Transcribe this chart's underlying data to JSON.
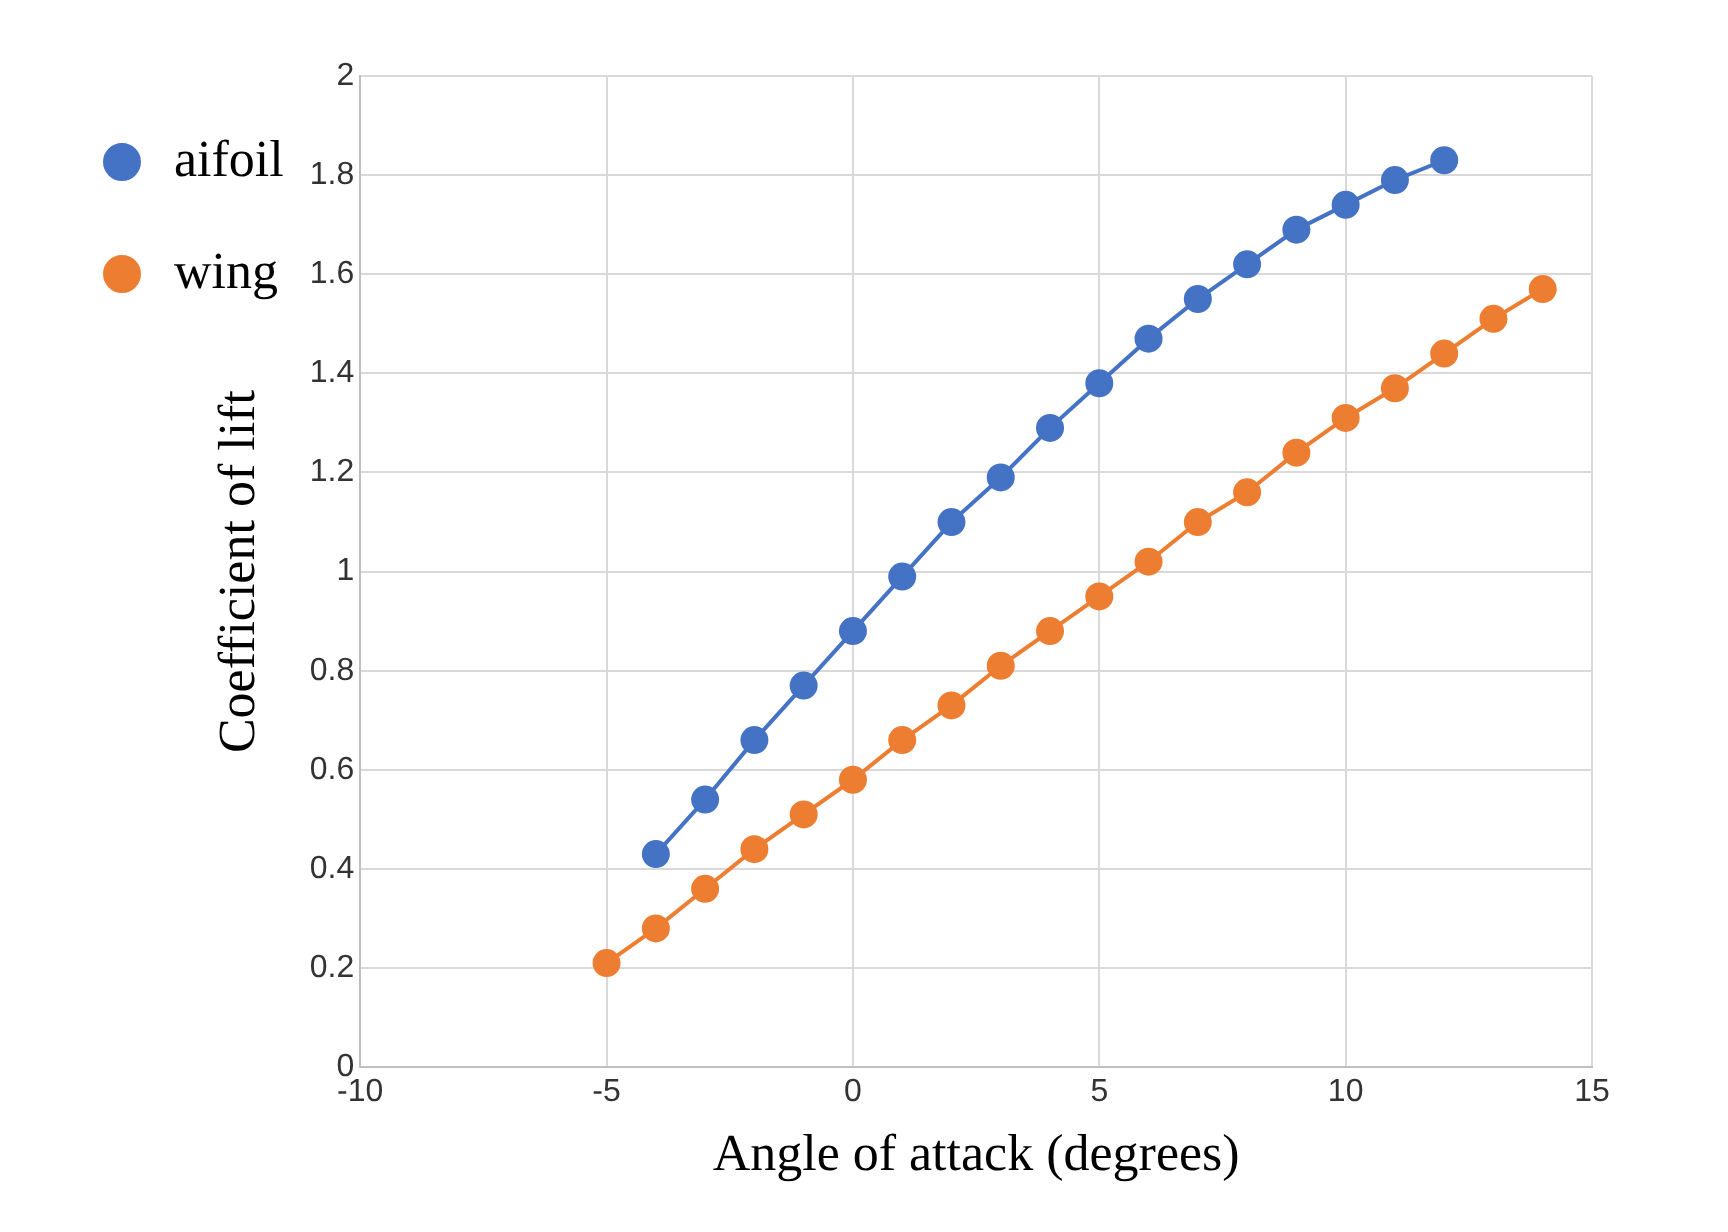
{
  "chart_data": {
    "type": "line",
    "xlabel": "Angle of attack (degrees)",
    "ylabel": "Coefficient of lift",
    "series": [
      {
        "name": "aifoil",
        "color": "#4472c4",
        "x": [
          -4,
          -3,
          -2,
          -1,
          0,
          1,
          2,
          3,
          4,
          5,
          6,
          7,
          8,
          9,
          10,
          11,
          12
        ],
        "values": [
          0.43,
          0.54,
          0.66,
          0.77,
          0.88,
          0.99,
          1.1,
          1.19,
          1.29,
          1.38,
          1.47,
          1.55,
          1.62,
          1.69,
          1.74,
          1.79,
          1.83
        ]
      },
      {
        "name": "wing",
        "color": "#ed7d31",
        "x": [
          -5,
          -4,
          -3,
          -2,
          -1,
          0,
          1,
          2,
          3,
          4,
          5,
          6,
          7,
          8,
          9,
          10,
          11,
          12,
          13,
          14
        ],
        "values": [
          0.21,
          0.28,
          0.36,
          0.44,
          0.51,
          0.58,
          0.66,
          0.73,
          0.81,
          0.88,
          0.95,
          1.02,
          1.1,
          1.16,
          1.24,
          1.31,
          1.37,
          1.44,
          1.51,
          1.57
        ]
      }
    ],
    "xlim": [
      -10,
      15
    ],
    "xticks": [
      -10,
      -5,
      0,
      5,
      10,
      15
    ],
    "ylim": [
      0,
      2
    ],
    "yticks": [
      0,
      0.2,
      0.4,
      0.6,
      0.8,
      1,
      1.2,
      1.4,
      1.6,
      1.8,
      2
    ],
    "grid": true,
    "legend": "left",
    "marker": "circle",
    "line_style": "solid"
  }
}
